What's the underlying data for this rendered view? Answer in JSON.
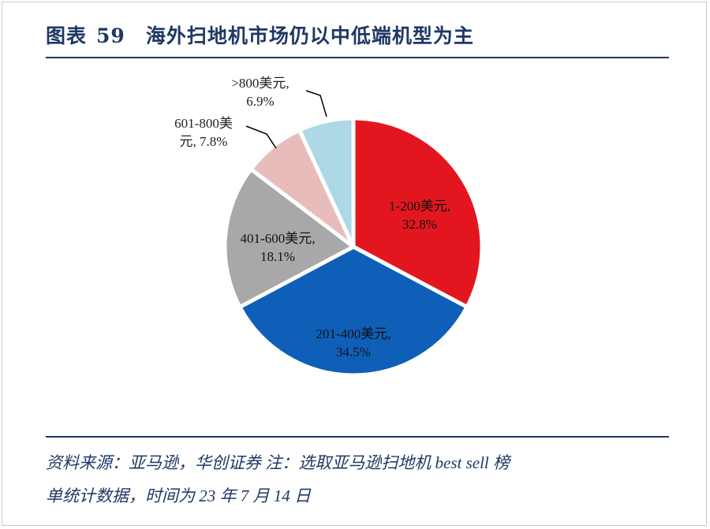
{
  "header": {
    "figure_label": "图表",
    "figure_number": "59",
    "title": "海外扫地机市场仍以中低端机型为主"
  },
  "chart_data": {
    "type": "pie",
    "slices": [
      {
        "label_line1": "1-200美元,",
        "label_line2": "32.8%",
        "category": "1-200美元",
        "value": 32.8,
        "color": "#e3161f"
      },
      {
        "label_line1": "201-400美元,",
        "label_line2": "34.5%",
        "category": "201-400美元",
        "value": 34.5,
        "color": "#0f5fb8"
      },
      {
        "label_line1": "401-600美元,",
        "label_line2": "18.1%",
        "category": "401-600美元",
        "value": 18.1,
        "color": "#a8a8a8"
      },
      {
        "label_line1": "601-800美",
        "label_line2": "元, 7.8%",
        "category": "601-800美元",
        "value": 7.8,
        "color": "#e9bcbc"
      },
      {
        "label_line1": ">800美元,",
        "label_line2": "6.9%",
        "category": ">800美元",
        "value": 6.9,
        "color": "#add8e6"
      }
    ]
  },
  "footer": {
    "source_line1": "资料来源：亚马逊，华创证券 注：选取亚马逊扫地机 best sell 榜",
    "source_line2": "单统计数据，时间为 23 年 7 月 14 日"
  }
}
